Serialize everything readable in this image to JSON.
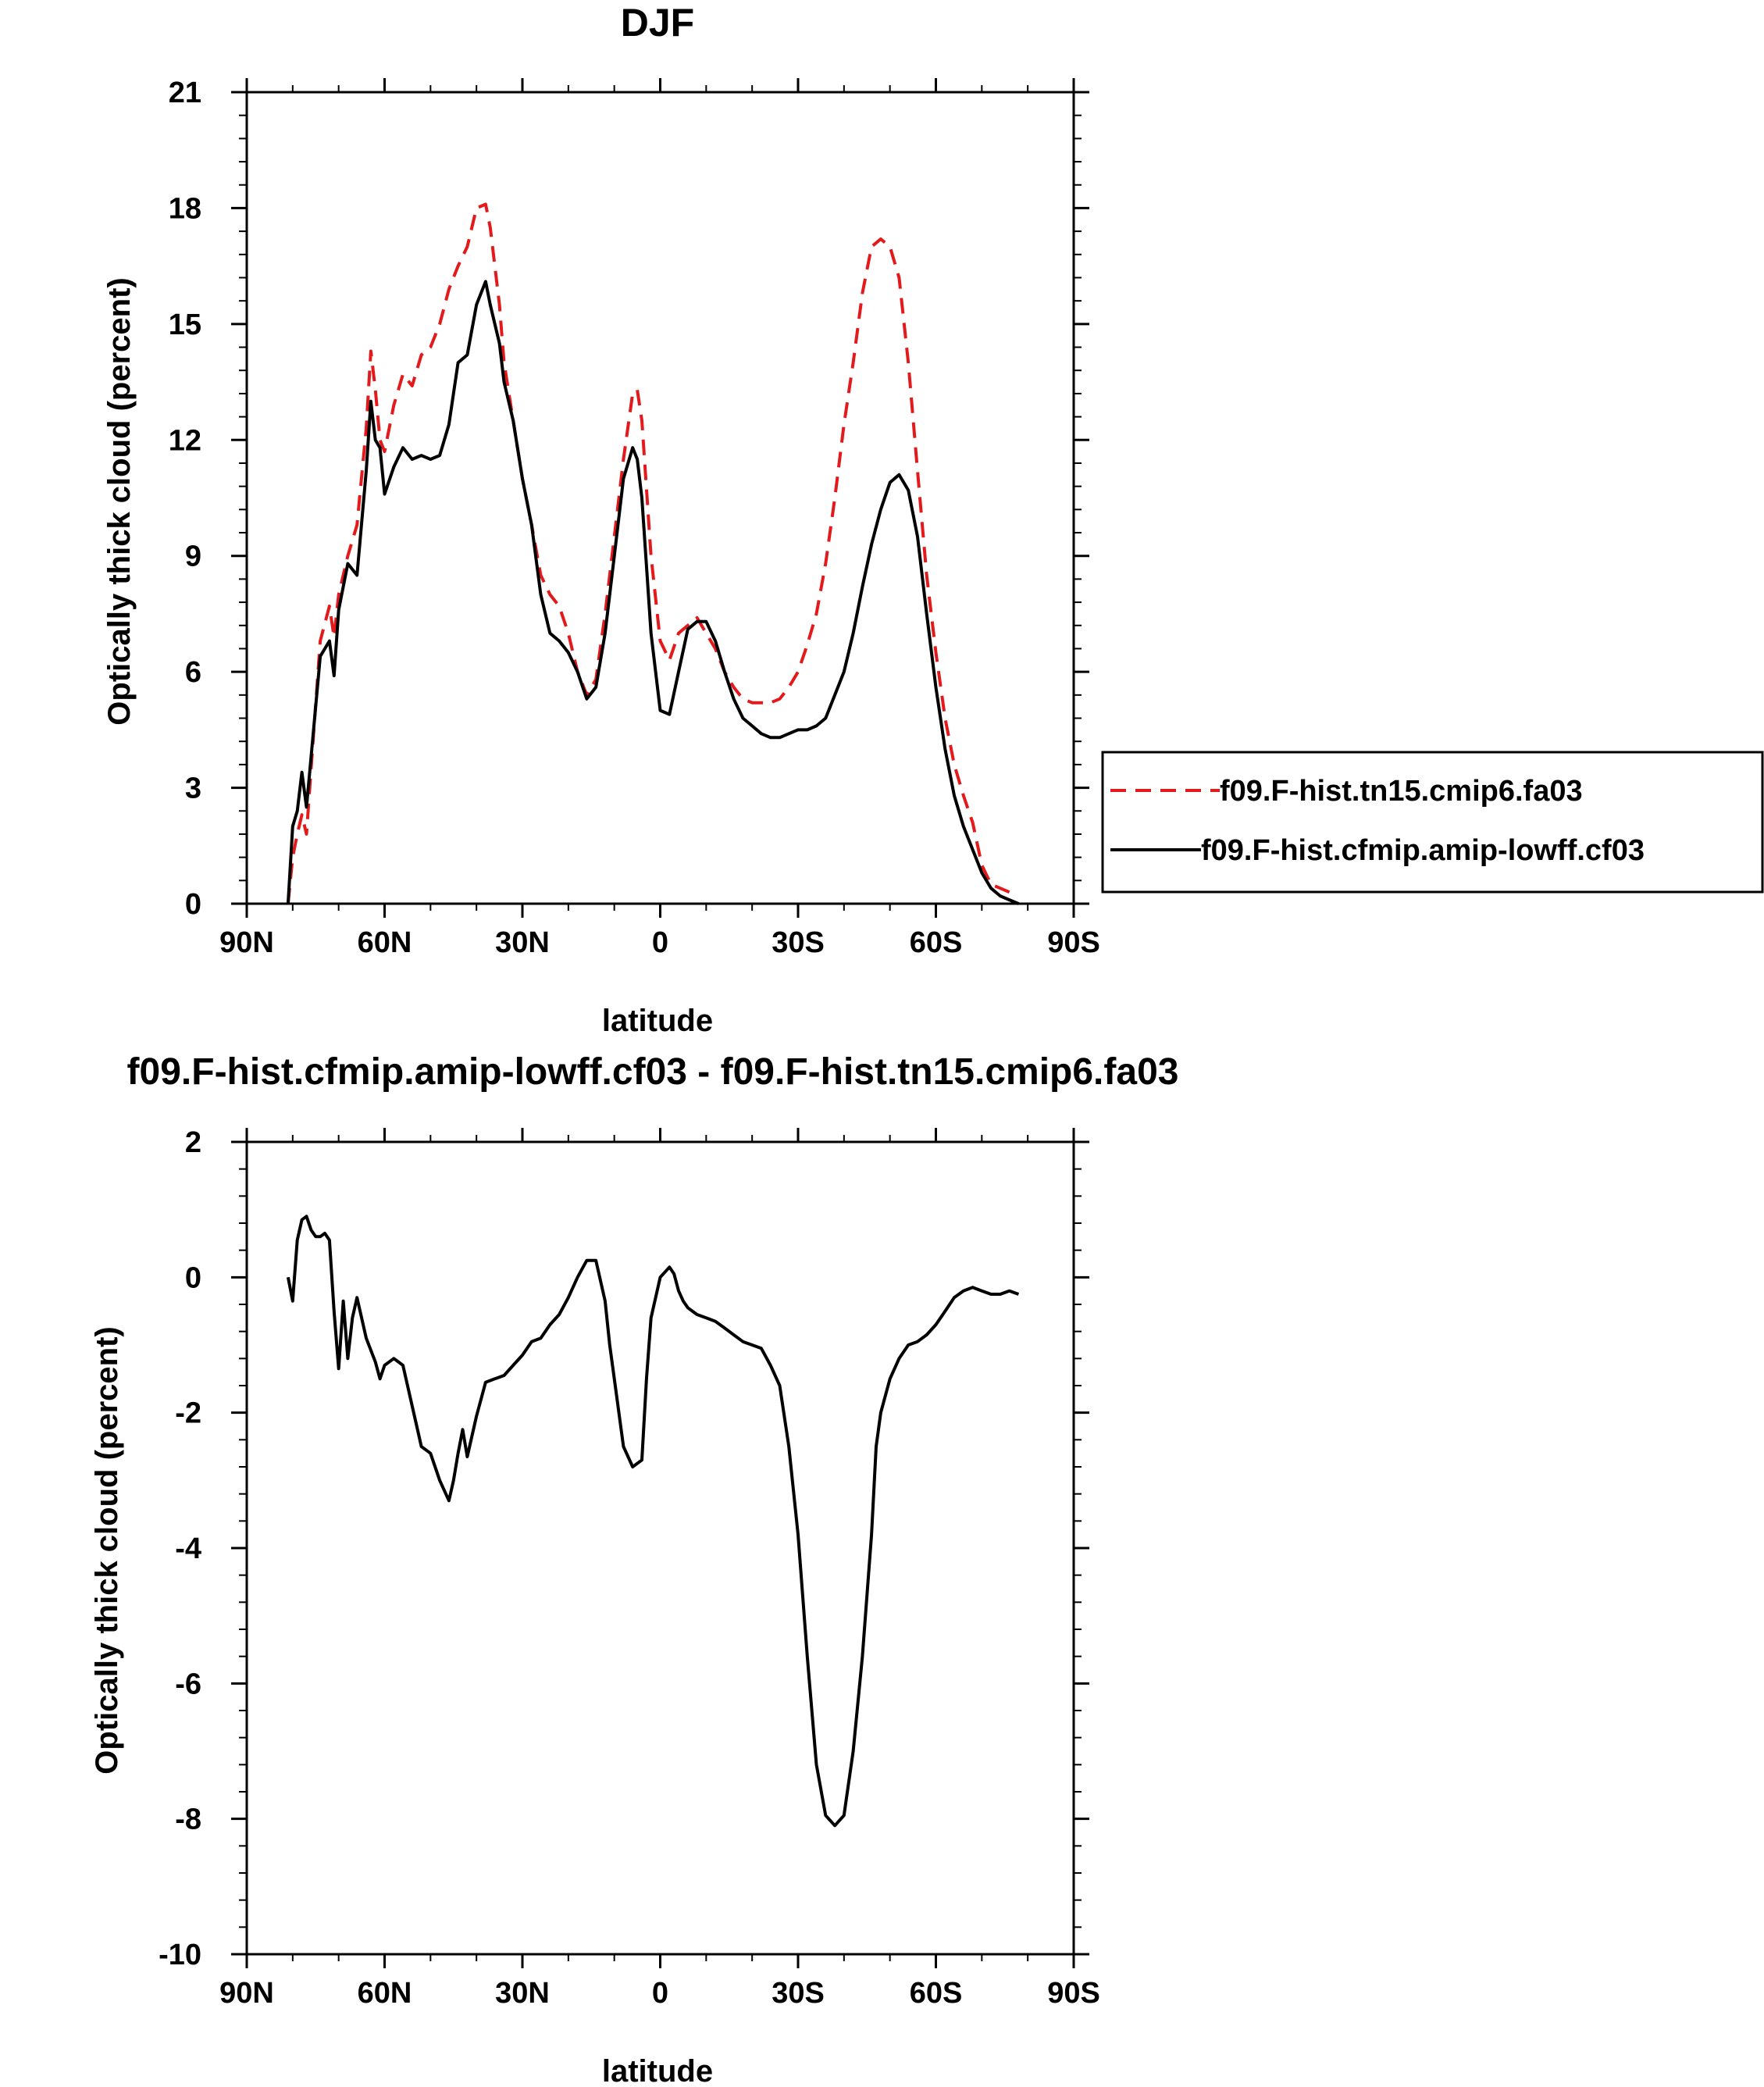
{
  "chart_data": [
    {
      "type": "line",
      "title": "DJF",
      "xlabel": "latitude",
      "ylabel": "Optically thick cloud (percent)",
      "xlim": [
        90,
        -90
      ],
      "ylim": [
        0,
        21
      ],
      "xticks": [
        90,
        60,
        30,
        0,
        -30,
        -60,
        -90
      ],
      "xtick_labels": [
        "90N",
        "60N",
        "30N",
        "0",
        "30S",
        "60S",
        "90S"
      ],
      "yticks": [
        0,
        3,
        6,
        9,
        12,
        15,
        18,
        21
      ],
      "ytick_labels": [
        "0",
        "3",
        "6",
        "9",
        "12",
        "15",
        "18",
        "21"
      ],
      "legend_position": "right",
      "series": [
        {
          "name": "f09.F-hist.tn15.cmip6.fa03",
          "color": "#e31a1c",
          "dash": "dashed",
          "x": [
            81,
            80,
            79,
            78,
            77,
            76,
            74,
            72,
            71,
            70,
            68,
            66,
            64,
            63,
            62,
            61,
            60,
            58,
            56,
            54,
            52,
            50,
            48,
            46,
            44,
            42,
            40,
            38,
            37,
            35,
            34,
            32,
            30,
            28,
            26,
            24,
            22,
            20,
            18,
            16,
            14,
            12,
            10,
            8,
            6,
            5,
            4,
            2,
            0,
            -2,
            -4,
            -6,
            -8,
            -10,
            -12,
            -14,
            -16,
            -18,
            -20,
            -22,
            -24,
            -26,
            -28,
            -30,
            -32,
            -34,
            -36,
            -38,
            -40,
            -42,
            -44,
            -46,
            -48,
            -50,
            -52,
            -54,
            -56,
            -58,
            -60,
            -62,
            -64,
            -66,
            -68,
            -70,
            -72,
            -74,
            -76,
            -78
          ],
          "y": [
            0,
            1.2,
            1.8,
            2.3,
            1.8,
            3.5,
            6.8,
            7.7,
            6.9,
            8.0,
            9.0,
            9.8,
            12.3,
            14.3,
            13.3,
            12.0,
            11.7,
            12.9,
            13.7,
            13.4,
            14.2,
            14.4,
            15.0,
            15.9,
            16.5,
            17.0,
            18.0,
            18.1,
            17.5,
            15.5,
            14.0,
            12.5,
            11.0,
            9.8,
            8.5,
            8.0,
            7.7,
            7.0,
            6.0,
            5.4,
            5.8,
            7.5,
            9.5,
            11.5,
            13.2,
            13.3,
            12.5,
            9.0,
            6.8,
            6.3,
            7.0,
            7.2,
            7.4,
            7.0,
            6.6,
            6.0,
            5.6,
            5.3,
            5.2,
            5.2,
            5.2,
            5.3,
            5.6,
            6.0,
            6.7,
            7.5,
            8.8,
            10.5,
            12.4,
            14.0,
            15.8,
            17.0,
            17.2,
            17.0,
            16.2,
            14.0,
            11.2,
            8.5,
            6.5,
            4.8,
            3.6,
            2.8,
            2.1,
            1.0,
            0.5,
            0.4,
            0.3,
            0.3
          ]
        },
        {
          "name": "f09.F-hist.cfmip.amip-lowff.cf03",
          "color": "#000000",
          "dash": "solid",
          "x": [
            81,
            80,
            79,
            78,
            77,
            76,
            74,
            72,
            71,
            70,
            68,
            66,
            64,
            63,
            62,
            61,
            60,
            58,
            56,
            54,
            52,
            50,
            48,
            46,
            44,
            42,
            40,
            38,
            37,
            35,
            34,
            32,
            30,
            28,
            26,
            24,
            22,
            20,
            18,
            16,
            14,
            12,
            10,
            8,
            6,
            5,
            4,
            2,
            0,
            -2,
            -4,
            -6,
            -8,
            -10,
            -12,
            -14,
            -16,
            -18,
            -20,
            -22,
            -24,
            -26,
            -28,
            -30,
            -32,
            -34,
            -36,
            -38,
            -40,
            -42,
            -44,
            -46,
            -48,
            -50,
            -52,
            -54,
            -56,
            -58,
            -60,
            -62,
            -64,
            -66,
            -68,
            -70,
            -72,
            -74,
            -76,
            -78
          ],
          "y": [
            0,
            2.0,
            2.4,
            3.4,
            2.5,
            3.8,
            6.4,
            6.8,
            5.9,
            7.6,
            8.8,
            8.5,
            11.2,
            13.0,
            12.0,
            11.8,
            10.6,
            11.3,
            11.8,
            11.5,
            11.6,
            11.5,
            11.6,
            12.4,
            14.0,
            14.2,
            15.5,
            16.1,
            15.5,
            14.5,
            13.5,
            12.5,
            11.0,
            9.8,
            8.0,
            7.0,
            6.8,
            6.5,
            6.0,
            5.3,
            5.6,
            7.0,
            9.0,
            11.0,
            11.8,
            11.5,
            10.5,
            7.0,
            5.0,
            4.9,
            6.0,
            7.1,
            7.3,
            7.3,
            6.8,
            6.0,
            5.3,
            4.8,
            4.6,
            4.4,
            4.3,
            4.3,
            4.4,
            4.5,
            4.5,
            4.6,
            4.8,
            5.4,
            6.0,
            7.0,
            8.2,
            9.3,
            10.2,
            10.9,
            11.1,
            10.7,
            9.5,
            7.5,
            5.6,
            4.0,
            2.8,
            2.0,
            1.4,
            0.8,
            0.4,
            0.2,
            0.1,
            0.0
          ]
        }
      ]
    },
    {
      "type": "line",
      "title": "f09.F-hist.cfmip.amip-lowff.cf03 - f09.F-hist.tn15.cmip6.fa03",
      "xlabel": "latitude",
      "ylabel": "Optically thick cloud (percent)",
      "xlim": [
        90,
        -90
      ],
      "ylim": [
        -10,
        2
      ],
      "xticks": [
        90,
        60,
        30,
        0,
        -30,
        -60,
        -90
      ],
      "xtick_labels": [
        "90N",
        "60N",
        "30N",
        "0",
        "30S",
        "60S",
        "90S"
      ],
      "yticks": [
        -10,
        -8,
        -6,
        -4,
        -2,
        0,
        2
      ],
      "ytick_labels": [
        "-10",
        "-8",
        "-6",
        "-4",
        "-2",
        "0",
        "2"
      ],
      "series": [
        {
          "color": "#000000",
          "dash": "solid",
          "x": [
            81,
            80,
            79,
            78,
            77,
            76,
            75,
            74,
            73,
            72,
            71,
            70,
            69,
            68,
            67,
            66,
            64,
            62,
            61,
            60,
            58,
            56,
            54,
            52,
            50,
            48,
            47,
            46,
            45,
            44,
            43,
            42,
            40,
            38,
            36,
            34,
            32,
            30,
            28,
            26,
            24,
            22,
            20,
            18,
            16,
            14,
            12,
            11,
            10,
            8,
            6,
            4,
            3,
            2,
            0,
            -2,
            -3,
            -4,
            -5,
            -6,
            -8,
            -10,
            -12,
            -14,
            -16,
            -18,
            -20,
            -22,
            -24,
            -26,
            -28,
            -30,
            -32,
            -34,
            -36,
            -38,
            -40,
            -42,
            -44,
            -46,
            -47,
            -48,
            -50,
            -52,
            -54,
            -56,
            -58,
            -60,
            -62,
            -64,
            -66,
            -68,
            -70,
            -72,
            -74,
            -76,
            -78
          ],
          "y": [
            0,
            -0.35,
            0.55,
            0.85,
            0.9,
            0.7,
            0.6,
            0.6,
            0.65,
            0.55,
            -0.5,
            -1.35,
            -0.35,
            -1.2,
            -0.6,
            -0.3,
            -0.9,
            -1.25,
            -1.5,
            -1.3,
            -1.2,
            -1.3,
            -1.9,
            -2.5,
            -2.6,
            -3.0,
            -3.15,
            -3.3,
            -3.0,
            -2.6,
            -2.25,
            -2.65,
            -2.05,
            -1.55,
            -1.5,
            -1.45,
            -1.3,
            -1.15,
            -0.95,
            -0.9,
            -0.7,
            -0.55,
            -0.3,
            0.0,
            0.25,
            0.25,
            -0.35,
            -1.0,
            -1.5,
            -2.5,
            -2.8,
            -2.7,
            -1.5,
            -0.6,
            0.0,
            0.15,
            0.05,
            -0.2,
            -0.35,
            -0.45,
            -0.55,
            -0.6,
            -0.65,
            -0.75,
            -0.85,
            -0.95,
            -1.0,
            -1.05,
            -1.3,
            -1.6,
            -2.5,
            -3.8,
            -5.6,
            -7.2,
            -7.95,
            -8.1,
            -7.95,
            -7.0,
            -5.6,
            -3.8,
            -2.5,
            -2.0,
            -1.5,
            -1.2,
            -1.0,
            -0.95,
            -0.85,
            -0.7,
            -0.5,
            -0.3,
            -0.2,
            -0.15,
            -0.2,
            -0.25,
            -0.25,
            -0.2,
            -0.25
          ]
        }
      ]
    }
  ]
}
